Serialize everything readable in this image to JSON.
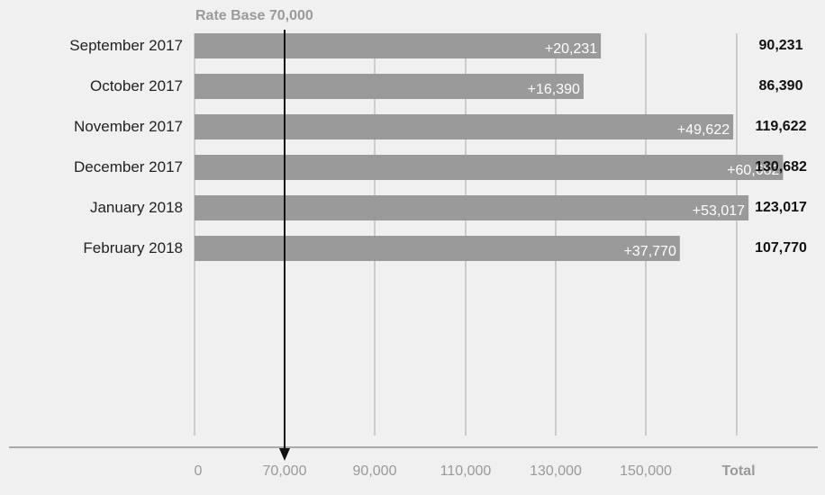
{
  "chart_data": {
    "type": "bar",
    "orientation": "horizontal",
    "reference_label": "Rate Base 70,000",
    "reference_value": 70000,
    "categories": [
      "September 2017",
      "October 2017",
      "November 2017",
      "December 2017",
      "January 2018",
      "February 2018"
    ],
    "increments": [
      "+20,231",
      "+16,390",
      "+49,622",
      "+60,682",
      "+53,017",
      "+37,770"
    ],
    "values": [
      90231,
      86390,
      119622,
      130682,
      123017,
      107770
    ],
    "totals": [
      "90,231",
      "86,390",
      "119,622",
      "130,682",
      "123,017",
      "107,770"
    ],
    "x_ticks": [
      "0",
      "70,000",
      "90,000",
      "110,000",
      "130,000",
      "150,000"
    ],
    "total_header": "Total",
    "grid": true,
    "colors": {
      "bar": "#9a9a9a",
      "background": "#f0f0f0",
      "gridline": "#a8a8a8",
      "reference_line": "#111111"
    }
  }
}
